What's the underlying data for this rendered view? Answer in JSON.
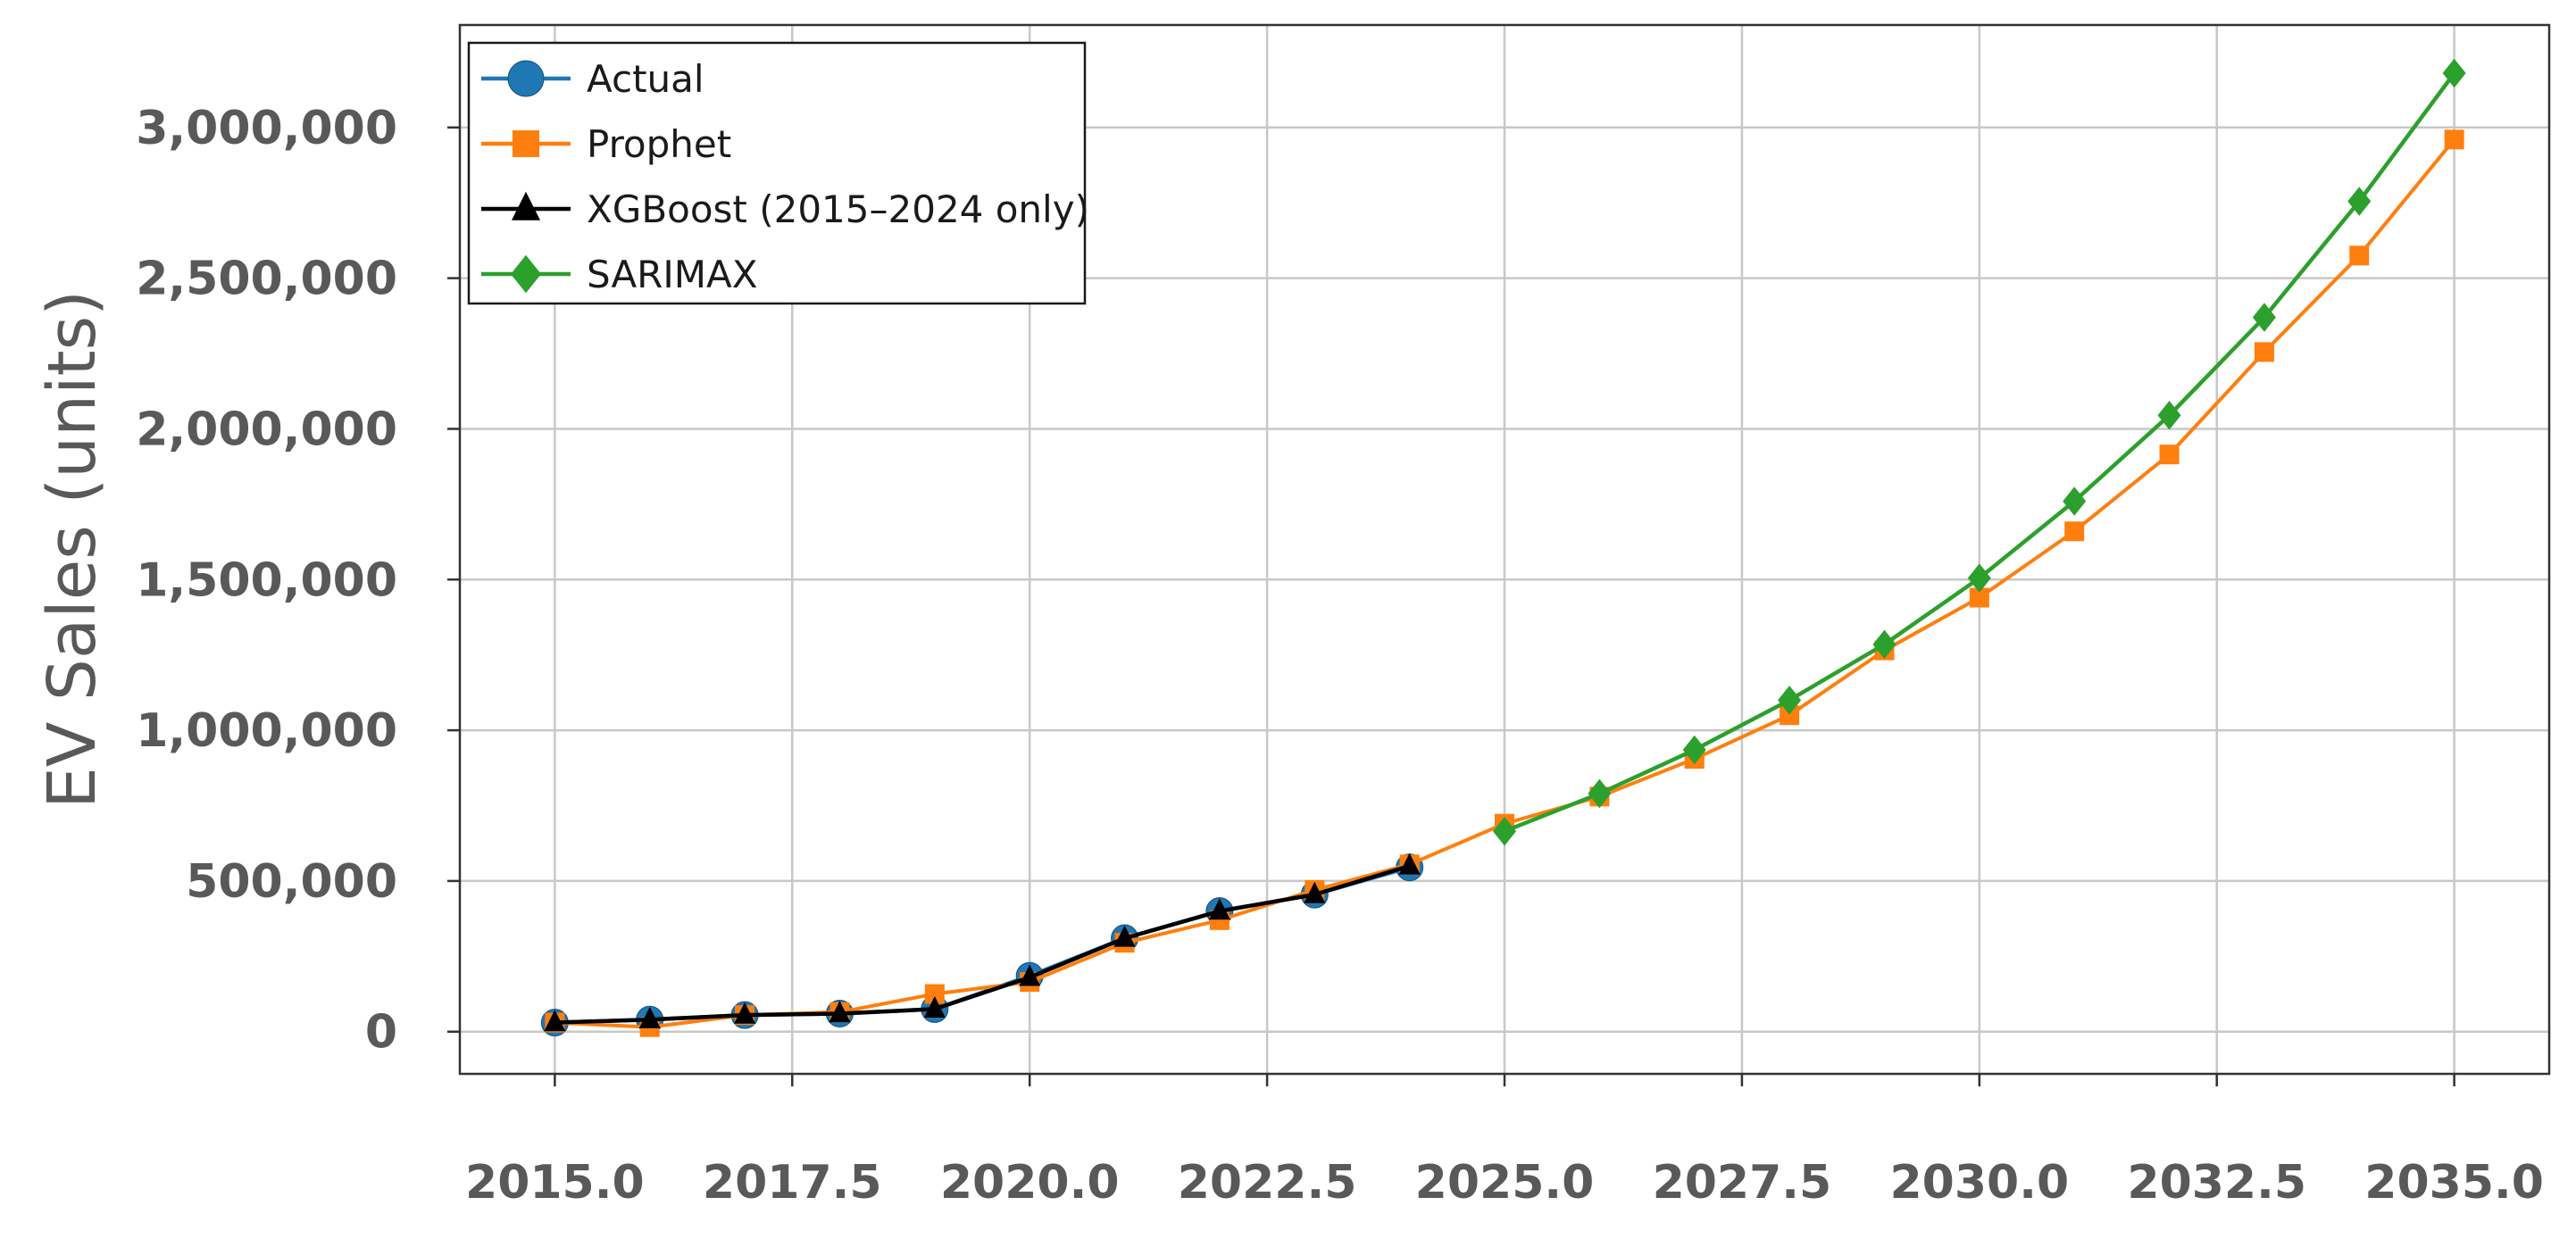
{
  "chart_data": {
    "type": "line",
    "title": "",
    "xlabel": "",
    "ylabel": "EV Sales (units)",
    "xlim": [
      2014,
      2036
    ],
    "ylim": [
      -140000,
      3340000
    ],
    "xticks": [
      2015.0,
      2017.5,
      2020.0,
      2022.5,
      2025.0,
      2027.5,
      2030.0,
      2032.5,
      2035.0
    ],
    "xtick_labels": [
      "2015.0",
      "2017.5",
      "2020.0",
      "2022.5",
      "2025.0",
      "2027.5",
      "2030.0",
      "2032.5",
      "2035.0"
    ],
    "yticks": [
      0,
      500000,
      1000000,
      1500000,
      2000000,
      2500000,
      3000000
    ],
    "ytick_labels": [
      "0",
      "500,000",
      "1,000,000",
      "1,500,000",
      "2,000,000",
      "2,500,000",
      "3,000,000"
    ],
    "grid": true,
    "legend_position": "top-left",
    "series": [
      {
        "name": "Actual",
        "color": "#1f77b4",
        "marker": "circle",
        "x": [
          2015,
          2016,
          2017,
          2018,
          2019,
          2020,
          2021,
          2022,
          2023,
          2024
        ],
        "y": [
          30000,
          40000,
          55000,
          60000,
          75000,
          185000,
          310000,
          400000,
          455000,
          545000
        ]
      },
      {
        "name": "Prophet",
        "color": "#ff7f0e",
        "marker": "square",
        "x": [
          2015,
          2016,
          2017,
          2018,
          2019,
          2020,
          2021,
          2022,
          2023,
          2024,
          2025,
          2026,
          2027,
          2028,
          2029,
          2030,
          2031,
          2032,
          2033,
          2034,
          2035
        ],
        "y": [
          30000,
          15000,
          55000,
          65000,
          125000,
          165000,
          295000,
          370000,
          470000,
          555000,
          690000,
          780000,
          905000,
          1050000,
          1265000,
          1440000,
          1660000,
          1915000,
          2255000,
          2575000,
          2960000
        ]
      },
      {
        "name": "XGBoost (2015–2024 only)",
        "color": "#000000",
        "marker": "triangle",
        "x": [
          2015,
          2016,
          2017,
          2018,
          2019,
          2020,
          2021,
          2022,
          2023,
          2024
        ],
        "y": [
          30000,
          40000,
          55000,
          60000,
          75000,
          180000,
          310000,
          400000,
          455000,
          550000
        ]
      },
      {
        "name": "SARIMAX",
        "color": "#2ca02c",
        "marker": "diamond",
        "x": [
          2025,
          2026,
          2027,
          2028,
          2029,
          2030,
          2031,
          2032,
          2033,
          2034,
          2035
        ],
        "y": [
          665000,
          790000,
          935000,
          1100000,
          1285000,
          1505000,
          1760000,
          2045000,
          2370000,
          2755000,
          3180000
        ]
      }
    ]
  }
}
